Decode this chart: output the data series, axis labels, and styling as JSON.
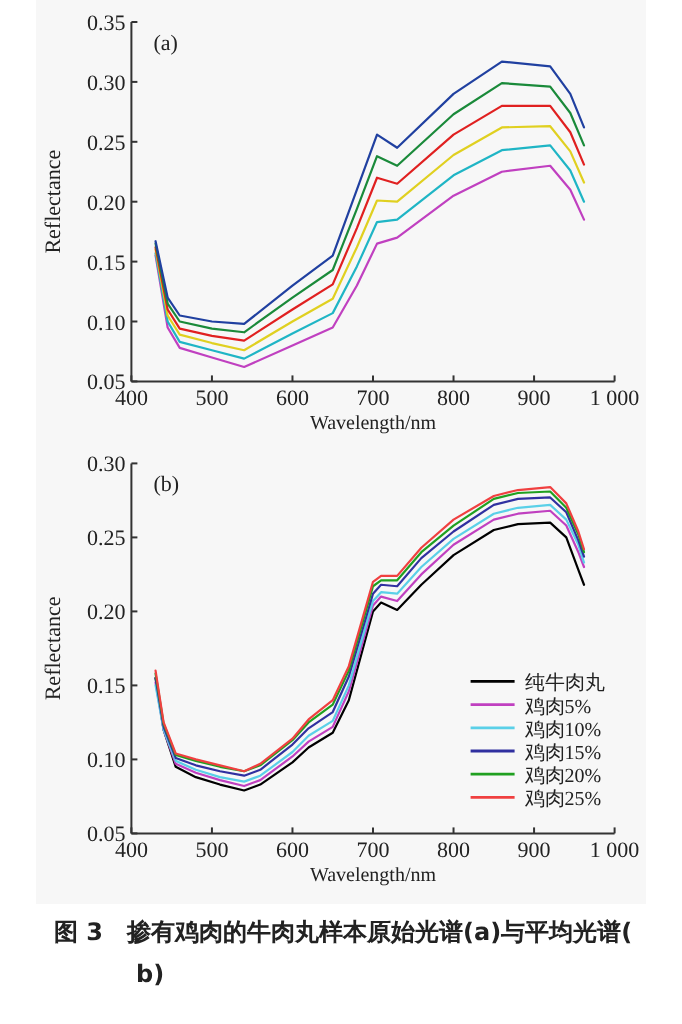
{
  "chart_data": [
    {
      "type": "line",
      "xlabel": "Wavelength/nm",
      "ylabel": "Reflectance",
      "annotations": [
        "(a)"
      ],
      "xlim": [
        400,
        1000
      ],
      "ylim": [
        0.05,
        0.35
      ],
      "xticks": [
        400,
        500,
        600,
        700,
        800,
        900,
        {
          "value": 1000,
          "label": "1 000"
        }
      ],
      "yticks": [
        0.05,
        {
          "value": 0.1,
          "label": "0.10"
        },
        0.15,
        {
          "value": 0.2,
          "label": "0.20"
        },
        0.25,
        {
          "value": 0.3,
          "label": "0.30"
        },
        0.35
      ],
      "x": [
        430,
        445,
        460,
        500,
        540,
        600,
        650,
        680,
        705,
        730,
        800,
        860,
        920,
        945,
        962
      ],
      "series": [
        {
          "color": "#c040c0",
          "values": [
            0.155,
            0.095,
            0.078,
            0.07,
            0.062,
            0.08,
            0.095,
            0.13,
            0.165,
            0.17,
            0.205,
            0.225,
            0.23,
            0.21,
            0.185
          ]
        },
        {
          "color": "#1fb5c5",
          "values": [
            0.157,
            0.1,
            0.083,
            0.076,
            0.069,
            0.09,
            0.107,
            0.146,
            0.183,
            0.185,
            0.222,
            0.243,
            0.247,
            0.226,
            0.2
          ]
        },
        {
          "color": "#e0d020",
          "values": [
            0.16,
            0.105,
            0.089,
            0.082,
            0.076,
            0.1,
            0.119,
            0.162,
            0.201,
            0.2,
            0.239,
            0.262,
            0.263,
            0.242,
            0.216
          ]
        },
        {
          "color": "#e02020",
          "values": [
            0.162,
            0.11,
            0.094,
            0.088,
            0.084,
            0.11,
            0.131,
            0.178,
            0.22,
            0.215,
            0.256,
            0.28,
            0.28,
            0.258,
            0.231
          ]
        },
        {
          "color": "#1a8a3a",
          "values": [
            0.165,
            0.115,
            0.1,
            0.094,
            0.091,
            0.12,
            0.143,
            0.194,
            0.238,
            0.23,
            0.273,
            0.299,
            0.296,
            0.274,
            0.247
          ]
        },
        {
          "color": "#2040a0",
          "values": [
            0.167,
            0.12,
            0.105,
            0.1,
            0.098,
            0.13,
            0.155,
            0.21,
            0.256,
            0.245,
            0.29,
            0.317,
            0.313,
            0.29,
            0.262
          ]
        }
      ]
    },
    {
      "type": "line",
      "xlabel": "Wavelength/nm",
      "ylabel": "Reflectance",
      "annotations": [
        "(b)",
        "图 3　掺有鸡肉的牛肉丸样本原始光谱(a)与平均光谱(b)"
      ],
      "xlim": [
        400,
        1000
      ],
      "ylim": [
        0.05,
        0.3
      ],
      "xticks": [
        400,
        500,
        600,
        700,
        800,
        900,
        {
          "value": 1000,
          "label": "1 000"
        }
      ],
      "yticks": [
        0.05,
        {
          "value": 0.1,
          "label": "0.10"
        },
        0.15,
        {
          "value": 0.2,
          "label": "0.20"
        },
        0.25,
        {
          "value": 0.3,
          "label": "0.30"
        }
      ],
      "legend": "bottom right",
      "x": [
        430,
        440,
        455,
        480,
        510,
        540,
        560,
        600,
        620,
        650,
        670,
        700,
        710,
        730,
        760,
        800,
        850,
        880,
        920,
        940,
        955,
        962
      ],
      "series": [
        {
          "name": "纯牛肉丸",
          "color": "#000000",
          "values": [
            0.155,
            0.12,
            0.095,
            0.088,
            0.083,
            0.079,
            0.083,
            0.098,
            0.108,
            0.118,
            0.14,
            0.2,
            0.206,
            0.201,
            0.218,
            0.238,
            0.255,
            0.259,
            0.26,
            0.25,
            0.228,
            0.218
          ]
        },
        {
          "name": "鸡肉5%",
          "color": "#c040c0",
          "values": [
            0.152,
            0.12,
            0.097,
            0.091,
            0.086,
            0.082,
            0.086,
            0.102,
            0.112,
            0.122,
            0.146,
            0.204,
            0.21,
            0.207,
            0.225,
            0.245,
            0.262,
            0.266,
            0.268,
            0.258,
            0.24,
            0.23
          ]
        },
        {
          "name": "鸡肉10%",
          "color": "#5ad0e8",
          "values": [
            0.15,
            0.12,
            0.099,
            0.093,
            0.088,
            0.085,
            0.089,
            0.105,
            0.116,
            0.126,
            0.15,
            0.207,
            0.213,
            0.212,
            0.23,
            0.249,
            0.266,
            0.27,
            0.272,
            0.262,
            0.245,
            0.233
          ]
        },
        {
          "name": "鸡肉15%",
          "color": "#3030a0",
          "values": [
            0.155,
            0.122,
            0.101,
            0.096,
            0.092,
            0.089,
            0.093,
            0.11,
            0.121,
            0.132,
            0.156,
            0.212,
            0.218,
            0.217,
            0.236,
            0.254,
            0.272,
            0.276,
            0.277,
            0.267,
            0.248,
            0.237
          ]
        },
        {
          "name": "鸡肉20%",
          "color": "#20a020",
          "values": [
            0.158,
            0.124,
            0.103,
            0.099,
            0.095,
            0.092,
            0.096,
            0.113,
            0.125,
            0.137,
            0.16,
            0.217,
            0.221,
            0.221,
            0.24,
            0.258,
            0.276,
            0.28,
            0.281,
            0.27,
            0.252,
            0.24
          ]
        },
        {
          "name": "鸡肉25%",
          "color": "#f04040",
          "values": [
            0.16,
            0.125,
            0.104,
            0.1,
            0.096,
            0.092,
            0.097,
            0.114,
            0.127,
            0.14,
            0.163,
            0.22,
            0.224,
            0.224,
            0.243,
            0.262,
            0.278,
            0.282,
            0.284,
            0.273,
            0.254,
            0.242
          ]
        }
      ]
    }
  ]
}
